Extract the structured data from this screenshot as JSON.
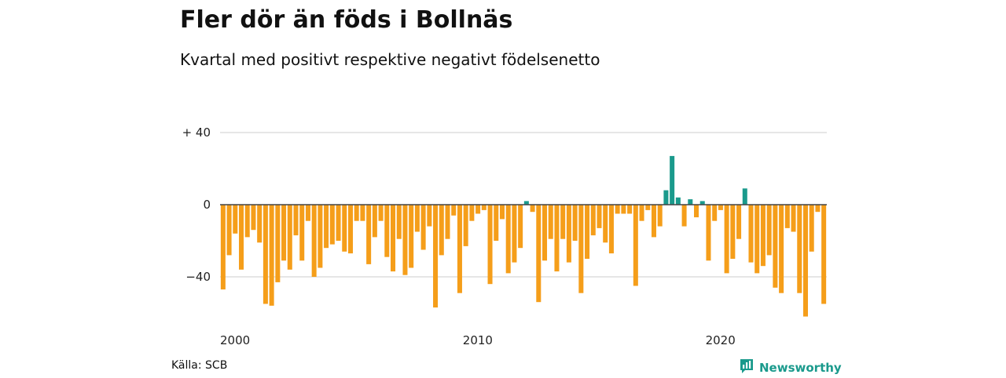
{
  "title": "Fler dör än föds i Bollnäs",
  "subtitle": "Kvartal med positivt respektive negativt födelsenetto",
  "source": "Källa: SCB",
  "brand": "Newsworthy",
  "colors": {
    "positive": "#1a9a8c",
    "negative": "#f59e1a",
    "grid": "#dddddd",
    "zero": "#444444",
    "brand": "#1a9a8c"
  },
  "icons": {
    "brand": "chart-bubble-icon"
  },
  "chart_data": {
    "type": "bar",
    "title": "Fler dör än föds i Bollnäs",
    "subtitle": "Kvartal med positivt respektive negativt födelsenetto",
    "xlabel": "",
    "ylabel": "",
    "ylim": [
      -63,
      45
    ],
    "yticks": [
      {
        "value": 40,
        "label": "+ 40"
      },
      {
        "value": 0,
        "label": "0"
      },
      {
        "value": -40,
        "label": "−40"
      }
    ],
    "xticks": [
      {
        "index": 0,
        "label": "2000"
      },
      {
        "index": 40,
        "label": "2010"
      },
      {
        "index": 80,
        "label": "2020"
      }
    ],
    "start_period": "2000 Q1",
    "grid": true,
    "legend": "none",
    "values": [
      -47,
      -28,
      -16,
      -36,
      -18,
      -14,
      -21,
      -55,
      -56,
      -43,
      -31,
      -36,
      -17,
      -31,
      -9,
      -40,
      -35,
      -24,
      -22,
      -20,
      -26,
      -27,
      -9,
      -9,
      -33,
      -18,
      -9,
      -29,
      -37,
      -19,
      -39,
      -35,
      -15,
      -25,
      -12,
      -57,
      -28,
      -19,
      -6,
      -49,
      -23,
      -9,
      -5,
      -3,
      -44,
      -20,
      -8,
      -38,
      -32,
      -24,
      2,
      -4,
      -54,
      -31,
      -19,
      -37,
      -19,
      -32,
      -20,
      -49,
      -30,
      -17,
      -13,
      -21,
      -27,
      -5,
      -5,
      -5,
      -45,
      -9,
      -3,
      -18,
      -12,
      8,
      27,
      4,
      -12,
      3,
      -7,
      2,
      -31,
      -9,
      -3,
      -38,
      -30,
      -19,
      9,
      -32,
      -38,
      -34,
      -28,
      -46,
      -49,
      -13,
      -15,
      -49,
      -62,
      -26,
      -4,
      -55
    ]
  }
}
